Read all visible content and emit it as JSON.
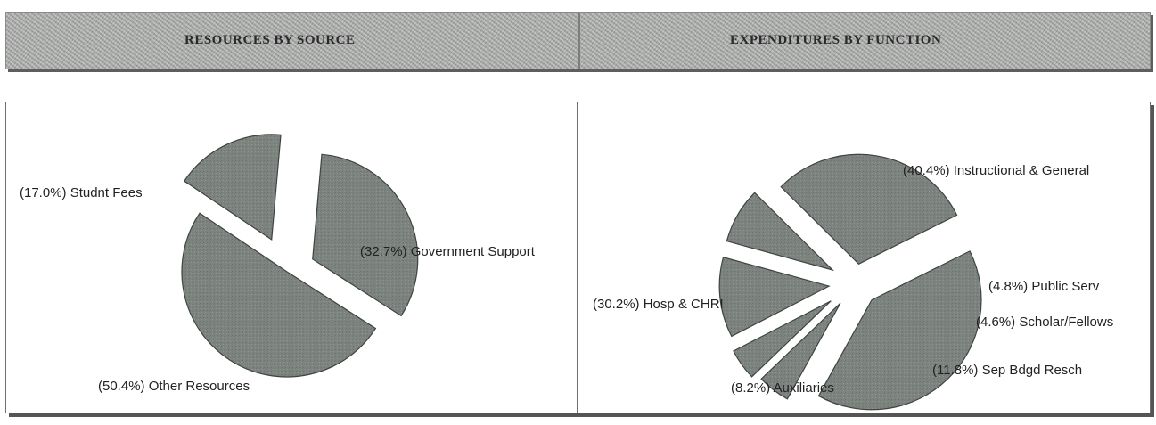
{
  "header": {
    "left_title": "RESOURCES BY SOURCE",
    "right_title": "EXPENDITURES BY FUNCTION"
  },
  "chart_data": [
    {
      "type": "pie",
      "title": "RESOURCES BY SOURCE",
      "slices": [
        {
          "label": "(32.7%) Government Support",
          "value": 32.7,
          "exploded": true
        },
        {
          "label": "(50.4%) Other Resources",
          "value": 50.4,
          "exploded": false
        },
        {
          "label": "(17.0%) Studnt Fees",
          "value": 17.0,
          "exploded": true
        }
      ],
      "colors": {
        "slice": "#7d847f",
        "outline": "#3f4440"
      }
    },
    {
      "type": "pie",
      "title": "EXPENDITURES BY FUNCTION",
      "slices": [
        {
          "label": "(40.4%) Instructional & General",
          "value": 40.4,
          "exploded": true
        },
        {
          "label": "(4.8%) Public Serv",
          "value": 4.8,
          "exploded": true
        },
        {
          "label": "(4.6%) Scholar/Fellows",
          "value": 4.6,
          "exploded": true
        },
        {
          "label": "(11.8%) Sep Bdgd Resch",
          "value": 11.8,
          "exploded": true
        },
        {
          "label": "(8.2%) Auxiliaries",
          "value": 8.2,
          "exploded": true
        },
        {
          "label": "(30.2%) Hosp & CHRI",
          "value": 30.2,
          "exploded": true
        }
      ],
      "colors": {
        "slice": "#7d847f",
        "outline": "#3f4440"
      }
    }
  ]
}
